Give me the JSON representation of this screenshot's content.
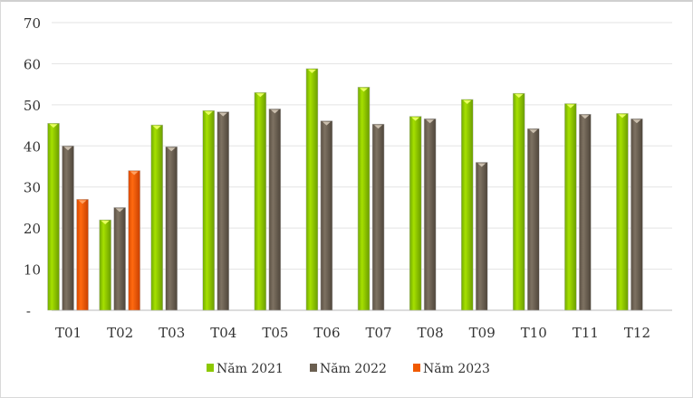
{
  "chart_data": {
    "type": "bar",
    "title": "",
    "xlabel": "",
    "ylabel": "",
    "ylim": [
      0,
      70
    ],
    "yticks": [
      0,
      10,
      20,
      30,
      40,
      50,
      60,
      70
    ],
    "ytick_labels": [
      "-",
      "10",
      "20",
      "30",
      "40",
      "50",
      "60",
      "70"
    ],
    "grid": true,
    "legend_position": "bottom",
    "categories": [
      "T01",
      "T02",
      "T03",
      "T04",
      "T05",
      "T06",
      "T07",
      "T08",
      "T09",
      "T10",
      "T11",
      "T12"
    ],
    "series": [
      {
        "name": "Năm 2021",
        "color": "#8cc800",
        "values": [
          45.5,
          22.0,
          45.1,
          48.6,
          53.0,
          58.8,
          54.3,
          47.2,
          51.3,
          52.8,
          50.3,
          47.9
        ]
      },
      {
        "name": "Năm 2022",
        "color": "#6b5f50",
        "values": [
          40.0,
          25.0,
          39.8,
          48.3,
          49.0,
          46.1,
          45.3,
          46.6,
          36.0,
          44.2,
          47.7,
          46.6
        ]
      },
      {
        "name": "Năm 2023",
        "color": "#f05a00",
        "values": [
          27.0,
          34.0,
          null,
          null,
          null,
          null,
          null,
          null,
          null,
          null,
          null,
          null
        ]
      }
    ]
  }
}
